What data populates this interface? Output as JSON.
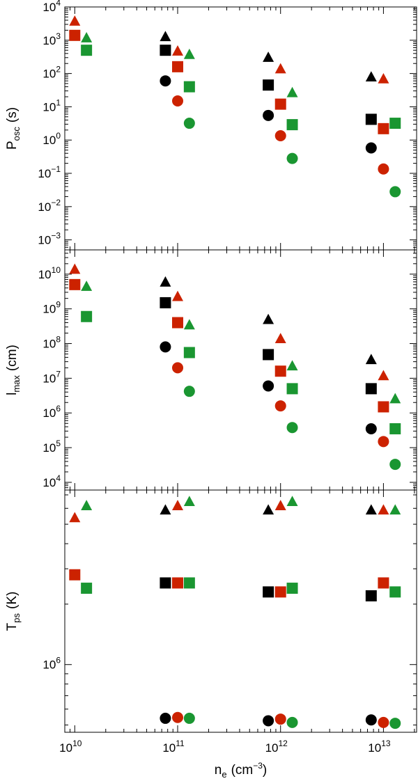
{
  "chart_data": [
    {
      "type": "scatter",
      "ylabel": "P",
      "ylabel_sub": "osc",
      "ylabel_unit": "(s)",
      "xscale": "log",
      "yscale": "log",
      "ylim": [
        0.0005,
        10000
      ],
      "yticks": [
        {
          "value": 0.001,
          "base": "10",
          "exp": "−3"
        },
        {
          "value": 0.01,
          "base": "10",
          "exp": "−2"
        },
        {
          "value": 0.1,
          "base": "10",
          "exp": "−1"
        },
        {
          "value": 1,
          "base": "10",
          "exp": "0"
        },
        {
          "value": 10,
          "base": "10",
          "exp": "1"
        },
        {
          "value": 100,
          "base": "10",
          "exp": "2"
        },
        {
          "value": 1000,
          "base": "10",
          "exp": "3"
        },
        {
          "value": 10000,
          "base": "10",
          "exp": "4"
        }
      ],
      "series": [
        {
          "color": "#000000",
          "marker": "triangle",
          "points": [
            {
              "x": 76000000000.0,
              "y": 1300
            },
            {
              "x": 760000000000.0,
              "y": 310
            },
            {
              "x": 7600000000000.0,
              "y": 80
            }
          ]
        },
        {
          "color": "#000000",
          "marker": "square",
          "points": [
            {
              "x": 76000000000.0,
              "y": 500
            },
            {
              "x": 760000000000.0,
              "y": 45
            },
            {
              "x": 7600000000000.0,
              "y": 4.2
            }
          ]
        },
        {
          "color": "#000000",
          "marker": "circle",
          "points": [
            {
              "x": 76000000000.0,
              "y": 60
            },
            {
              "x": 760000000000.0,
              "y": 5.5
            },
            {
              "x": 7600000000000.0,
              "y": 0.58
            }
          ]
        },
        {
          "color": "#cc2200",
          "marker": "triangle",
          "points": [
            {
              "x": 10000000000.0,
              "y": 3800
            },
            {
              "x": 100000000000.0,
              "y": 480
            },
            {
              "x": 1000000000000.0,
              "y": 140
            },
            {
              "x": 10000000000000.0,
              "y": 70
            }
          ]
        },
        {
          "color": "#cc2200",
          "marker": "square",
          "points": [
            {
              "x": 10000000000.0,
              "y": 1400
            },
            {
              "x": 100000000000.0,
              "y": 160
            },
            {
              "x": 1000000000000.0,
              "y": 12
            },
            {
              "x": 10000000000000.0,
              "y": 2.2
            }
          ]
        },
        {
          "color": "#cc2200",
          "marker": "circle",
          "points": [
            {
              "x": 100000000000.0,
              "y": 15
            },
            {
              "x": 1000000000000.0,
              "y": 1.35
            },
            {
              "x": 10000000000000.0,
              "y": 0.135
            }
          ]
        },
        {
          "color": "#1a9631",
          "marker": "triangle",
          "points": [
            {
              "x": 13000000000.0,
              "y": 1200
            },
            {
              "x": 130000000000.0,
              "y": 380
            },
            {
              "x": 1300000000000.0,
              "y": 27
            }
          ]
        },
        {
          "color": "#1a9631",
          "marker": "square",
          "points": [
            {
              "x": 13000000000.0,
              "y": 500
            },
            {
              "x": 130000000000.0,
              "y": 40
            },
            {
              "x": 1300000000000.0,
              "y": 2.9
            },
            {
              "x": 13000000000000.0,
              "y": 3.2
            }
          ]
        },
        {
          "color": "#1a9631",
          "marker": "circle",
          "points": [
            {
              "x": 130000000000.0,
              "y": 3.2
            },
            {
              "x": 1300000000000.0,
              "y": 0.28
            },
            {
              "x": 13000000000000.0,
              "y": 0.028
            }
          ]
        }
      ]
    },
    {
      "type": "scatter",
      "ylabel": "l",
      "ylabel_sub": "max",
      "ylabel_unit": "(cm)",
      "xscale": "log",
      "yscale": "log",
      "ylim": [
        6000,
        50000000000
      ],
      "yticks": [
        {
          "value": 10000,
          "base": "10",
          "exp": "4"
        },
        {
          "value": 100000,
          "base": "10",
          "exp": "5"
        },
        {
          "value": 1000000,
          "base": "10",
          "exp": "6"
        },
        {
          "value": 10000000,
          "base": "10",
          "exp": "7"
        },
        {
          "value": 100000000,
          "base": "10",
          "exp": "8"
        },
        {
          "value": 1000000000,
          "base": "10",
          "exp": "9"
        },
        {
          "value": 10000000000,
          "base": "10",
          "exp": "10"
        }
      ],
      "series": [
        {
          "color": "#000000",
          "marker": "triangle",
          "points": [
            {
              "x": 76000000000.0,
              "y": 6000000000.0
            },
            {
              "x": 760000000000.0,
              "y": 500000000.0
            },
            {
              "x": 7600000000000.0,
              "y": 35000000.0
            }
          ]
        },
        {
          "color": "#000000",
          "marker": "square",
          "points": [
            {
              "x": 76000000000.0,
              "y": 1500000000.0
            },
            {
              "x": 760000000000.0,
              "y": 48000000.0
            },
            {
              "x": 7600000000000.0,
              "y": 5000000.0
            }
          ]
        },
        {
          "color": "#000000",
          "marker": "circle",
          "points": [
            {
              "x": 76000000000.0,
              "y": 80000000.0
            },
            {
              "x": 760000000000.0,
              "y": 6000000.0
            },
            {
              "x": 7600000000000.0,
              "y": 350000.0
            }
          ]
        },
        {
          "color": "#cc2200",
          "marker": "triangle",
          "points": [
            {
              "x": 10000000000.0,
              "y": 14000000000.0
            },
            {
              "x": 100000000000.0,
              "y": 2300000000.0
            },
            {
              "x": 1000000000000.0,
              "y": 140000000.0
            },
            {
              "x": 10000000000000.0,
              "y": 12000000.0
            }
          ]
        },
        {
          "color": "#cc2200",
          "marker": "square",
          "points": [
            {
              "x": 10000000000.0,
              "y": 5000000000.0
            },
            {
              "x": 100000000000.0,
              "y": 400000000.0
            },
            {
              "x": 1000000000000.0,
              "y": 16000000.0
            },
            {
              "x": 10000000000000.0,
              "y": 1500000.0
            }
          ]
        },
        {
          "color": "#cc2200",
          "marker": "circle",
          "points": [
            {
              "x": 100000000000.0,
              "y": 20000000.0
            },
            {
              "x": 1000000000000.0,
              "y": 1600000.0
            },
            {
              "x": 10000000000000.0,
              "y": 150000.0
            }
          ]
        },
        {
          "color": "#1a9631",
          "marker": "triangle",
          "points": [
            {
              "x": 13000000000.0,
              "y": 4500000000.0
            },
            {
              "x": 130000000000.0,
              "y": 350000000.0
            },
            {
              "x": 1300000000000.0,
              "y": 23000000.0
            },
            {
              "x": 13000000000000.0,
              "y": 2600000.0
            }
          ]
        },
        {
          "color": "#1a9631",
          "marker": "square",
          "points": [
            {
              "x": 13000000000.0,
              "y": 600000000.0
            },
            {
              "x": 130000000000.0,
              "y": 55000000.0
            },
            {
              "x": 1300000000000.0,
              "y": 5000000.0
            },
            {
              "x": 13000000000000.0,
              "y": 350000.0
            }
          ]
        },
        {
          "color": "#1a9631",
          "marker": "circle",
          "points": [
            {
              "x": 130000000000.0,
              "y": 4200000.0
            },
            {
              "x": 1300000000000.0,
              "y": 380000.0
            },
            {
              "x": 13000000000000.0,
              "y": 33000.0
            }
          ]
        }
      ]
    },
    {
      "type": "scatter",
      "ylabel": "T",
      "ylabel_sub": "ps",
      "ylabel_unit": "(K)",
      "xlabel": "n",
      "xlabel_sub": "e",
      "xlabel_unit_base": "(cm",
      "xlabel_unit_exp": "−3",
      "xlabel_unit_close": ")",
      "xscale": "log",
      "yscale": "log",
      "ylim": [
        460000,
        7400000
      ],
      "yticks": [
        {
          "value": 1000000,
          "base": "10",
          "exp": "6"
        }
      ],
      "minor_yticks": [
        500000,
        600000,
        700000,
        800000,
        900000,
        2000000,
        3000000,
        4000000,
        5000000,
        6000000,
        7000000
      ],
      "xticks": [
        {
          "value": 10000000000.0,
          "base": "10",
          "exp": "10"
        },
        {
          "value": 100000000000.0,
          "base": "10",
          "exp": "11"
        },
        {
          "value": 1000000000000.0,
          "base": "10",
          "exp": "12"
        },
        {
          "value": 10000000000000.0,
          "base": "10",
          "exp": "13"
        }
      ],
      "series": [
        {
          "color": "#000000",
          "marker": "triangle",
          "points": [
            {
              "x": 76000000000.0,
              "y": 5900000.0
            },
            {
              "x": 760000000000.0,
              "y": 5900000.0
            },
            {
              "x": 7600000000000.0,
              "y": 5900000.0
            }
          ]
        },
        {
          "color": "#000000",
          "marker": "square",
          "points": [
            {
              "x": 76000000000.0,
              "y": 2550000.0
            },
            {
              "x": 760000000000.0,
              "y": 2300000.0
            },
            {
              "x": 7600000000000.0,
              "y": 2200000.0
            }
          ]
        },
        {
          "color": "#000000",
          "marker": "circle",
          "points": [
            {
              "x": 76000000000.0,
              "y": 540000.0
            },
            {
              "x": 760000000000.0,
              "y": 525000.0
            },
            {
              "x": 7600000000000.0,
              "y": 530000.0
            }
          ]
        },
        {
          "color": "#cc2200",
          "marker": "triangle",
          "points": [
            {
              "x": 10000000000.0,
              "y": 5400000.0
            },
            {
              "x": 100000000000.0,
              "y": 6200000.0
            },
            {
              "x": 1000000000000.0,
              "y": 6200000.0
            },
            {
              "x": 10000000000000.0,
              "y": 5900000.0
            }
          ]
        },
        {
          "color": "#cc2200",
          "marker": "square",
          "points": [
            {
              "x": 10000000000.0,
              "y": 2800000.0
            },
            {
              "x": 100000000000.0,
              "y": 2550000.0
            },
            {
              "x": 1000000000000.0,
              "y": 2300000.0
            },
            {
              "x": 10000000000000.0,
              "y": 2550000.0
            }
          ]
        },
        {
          "color": "#cc2200",
          "marker": "circle",
          "points": [
            {
              "x": 100000000000.0,
              "y": 545000.0
            },
            {
              "x": 1000000000000.0,
              "y": 535000.0
            },
            {
              "x": 10000000000000.0,
              "y": 515000.0
            }
          ]
        },
        {
          "color": "#1a9631",
          "marker": "triangle",
          "points": [
            {
              "x": 13000000000.0,
              "y": 6200000.0
            },
            {
              "x": 130000000000.0,
              "y": 6500000.0
            },
            {
              "x": 1300000000000.0,
              "y": 6500000.0
            },
            {
              "x": 13000000000000.0,
              "y": 5900000.0
            }
          ]
        },
        {
          "color": "#1a9631",
          "marker": "square",
          "points": [
            {
              "x": 13000000000.0,
              "y": 2400000.0
            },
            {
              "x": 130000000000.0,
              "y": 2550000.0
            },
            {
              "x": 1300000000000.0,
              "y": 2400000.0
            },
            {
              "x": 13000000000000.0,
              "y": 2300000.0
            }
          ]
        },
        {
          "color": "#1a9631",
          "marker": "circle",
          "points": [
            {
              "x": 130000000000.0,
              "y": 540000.0
            },
            {
              "x": 1300000000000.0,
              "y": 515000.0
            },
            {
              "x": 13000000000000.0,
              "y": 510000.0
            }
          ]
        }
      ]
    }
  ]
}
